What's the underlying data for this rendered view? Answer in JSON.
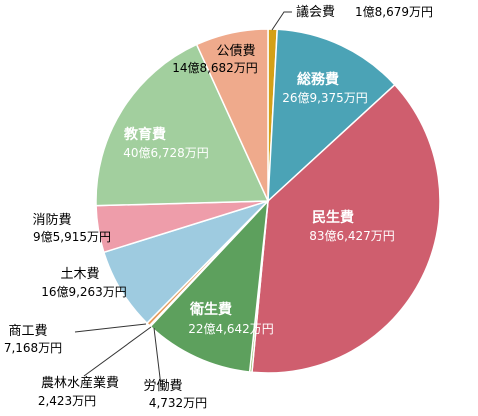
{
  "chart_data": {
    "type": "pie",
    "title": "",
    "unit": "万円",
    "slices": [
      {
        "name": "議会費",
        "label": "1億8,679万円",
        "value": 18679,
        "color": "#D4A017"
      },
      {
        "name": "総務費",
        "label": "26億9,375万円",
        "value": 269375,
        "color": "#4BA3B6"
      },
      {
        "name": "民生費",
        "label": "83億6,427万円",
        "value": 836427,
        "color": "#CF5E6E"
      },
      {
        "name": "労働費",
        "label": "4,732万円",
        "value": 4732,
        "color": "#8DB360"
      },
      {
        "name": "衛生費",
        "label": "22億4,642万円",
        "value": 224642,
        "color": "#5DA05D"
      },
      {
        "name": "農林水産業費",
        "label": "2,423万円",
        "value": 2423,
        "color": "#A7C86E"
      },
      {
        "name": "商工費",
        "label": "7,168万円",
        "value": 7168,
        "color": "#E59A5C"
      },
      {
        "name": "土木費",
        "label": "16億9,263万円",
        "value": 169263,
        "color": "#9ECBE0"
      },
      {
        "name": "消防費",
        "label": "9億5,915万円",
        "value": 95915,
        "color": "#EE9DAA"
      },
      {
        "name": "教育費",
        "label": "40億6,728万円",
        "value": 406728,
        "color": "#A2CF9E"
      },
      {
        "name": "公債費",
        "label": "14億8,682万円",
        "value": 148682,
        "color": "#EFAA8C"
      }
    ]
  }
}
